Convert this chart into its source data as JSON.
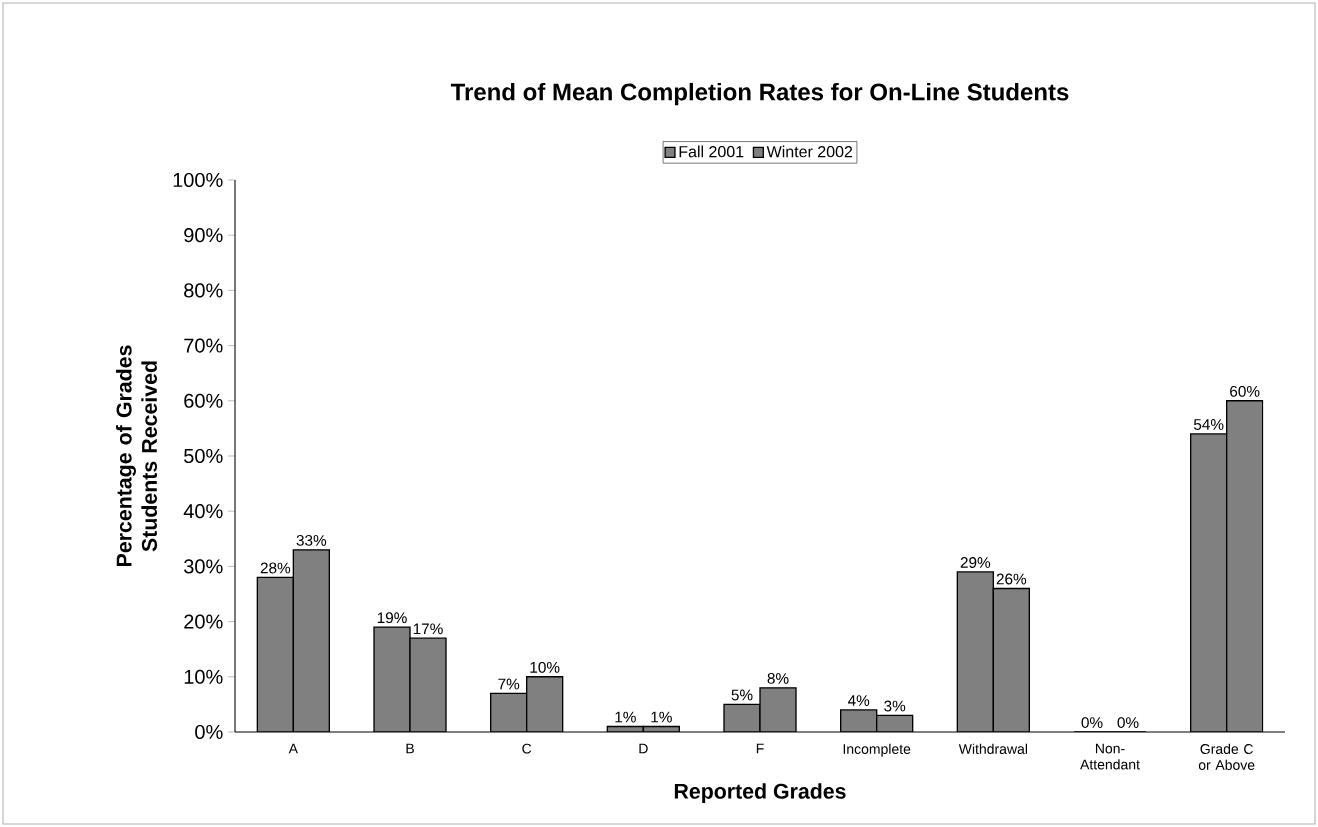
{
  "chart_data": {
    "type": "bar",
    "title": "Trend of Mean Completion Rates for On-Line Students",
    "xlabel": "Reported Grades",
    "ylabel": "Percentage of Grades Students Received",
    "categories": [
      "A",
      "B",
      "C",
      "D",
      "F",
      "Incomplete",
      "Withdrawal",
      "Non-Attendant",
      "Grade C or Above"
    ],
    "series": [
      {
        "name": "Fall 2001",
        "color": "#808080",
        "values": [
          28,
          19,
          7,
          1,
          5,
          4,
          29,
          0,
          54
        ],
        "value_labels": [
          "28%",
          "19%",
          "7%",
          "1%",
          "5%",
          "4%",
          "29%",
          "0%",
          "54%"
        ]
      },
      {
        "name": "Winter 2002",
        "color": "#808080",
        "values": [
          33,
          17,
          10,
          1,
          8,
          3,
          26,
          0,
          60
        ],
        "value_labels": [
          "33%",
          "17%",
          "10%",
          "1%",
          "8%",
          "3%",
          "26%",
          "0%",
          "60%"
        ]
      }
    ],
    "ylim": [
      0,
      100
    ],
    "yticks": [
      {
        "value": 0,
        "label": "0%"
      },
      {
        "value": 10,
        "label": "10%"
      },
      {
        "value": 20,
        "label": "20%"
      },
      {
        "value": 30,
        "label": "30%"
      },
      {
        "value": 40,
        "label": "40%"
      },
      {
        "value": 50,
        "label": "50%"
      },
      {
        "value": 60,
        "label": "60%"
      },
      {
        "value": 70,
        "label": "70%"
      },
      {
        "value": 80,
        "label": "80%"
      },
      {
        "value": 90,
        "label": "90%"
      },
      {
        "value": 100,
        "label": "100%"
      }
    ],
    "grid": false,
    "legend": "top"
  }
}
